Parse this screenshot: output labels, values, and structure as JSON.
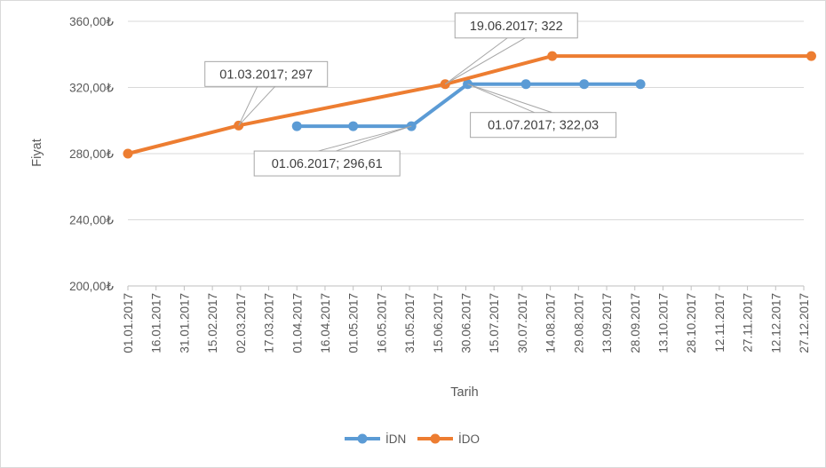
{
  "chart_data": {
    "type": "line",
    "xlabel": "Tarih",
    "ylabel": "Fiyat",
    "ylim": [
      200,
      360
    ],
    "y_ticks": [
      "200,00₺",
      "240,00₺",
      "280,00₺",
      "320,00₺",
      "360,00₺"
    ],
    "y_tick_values": [
      200,
      240,
      280,
      320,
      360
    ],
    "x_tick_labels": [
      "01.01.2017",
      "16.01.2017",
      "31.01.2017",
      "15.02.2017",
      "02.03.2017",
      "17.03.2017",
      "01.04.2017",
      "16.04.2017",
      "01.05.2017",
      "16.05.2017",
      "31.05.2017",
      "15.06.2017",
      "30.06.2017",
      "15.07.2017",
      "30.07.2017",
      "14.08.2017",
      "29.08.2017",
      "13.09.2017",
      "28.09.2017",
      "13.10.2017",
      "28.10.2017",
      "12.11.2017",
      "27.11.2017",
      "12.12.2017",
      "27.12.2017"
    ],
    "xlim": [
      "01.01.2017",
      "27.12.2017"
    ],
    "grid": "horizontal",
    "legend_position": "bottom",
    "series": [
      {
        "name": "İDN",
        "color": "#5b9bd5",
        "points": [
          {
            "x": "01.04.2017",
            "y": 296.61
          },
          {
            "x": "01.05.2017",
            "y": 296.61
          },
          {
            "x": "01.06.2017",
            "y": 296.61
          },
          {
            "x": "01.07.2017",
            "y": 322.03
          },
          {
            "x": "01.08.2017",
            "y": 322.03
          },
          {
            "x": "01.09.2017",
            "y": 322.03
          },
          {
            "x": "01.10.2017",
            "y": 322.03
          }
        ]
      },
      {
        "name": "İDO",
        "color": "#ed7d31",
        "points": [
          {
            "x": "01.01.2017",
            "y": 280
          },
          {
            "x": "01.03.2017",
            "y": 297
          },
          {
            "x": "19.06.2017",
            "y": 322
          },
          {
            "x": "15.08.2017",
            "y": 339
          },
          {
            "x": "31.12.2017",
            "y": 339
          }
        ]
      }
    ],
    "annotations": [
      {
        "series": "İDO",
        "x": "01.03.2017",
        "y": 297,
        "text": "01.03.2017; 297"
      },
      {
        "series": "İDO",
        "x": "19.06.2017",
        "y": 322,
        "text": "19.06.2017; 322"
      },
      {
        "series": "İDN",
        "x": "01.07.2017",
        "y": 322.03,
        "text": "01.07.2017; 322,03"
      },
      {
        "series": "İDN",
        "x": "01.06.2017",
        "y": 296.61,
        "text": "01.06.2017; 296,61"
      }
    ]
  }
}
